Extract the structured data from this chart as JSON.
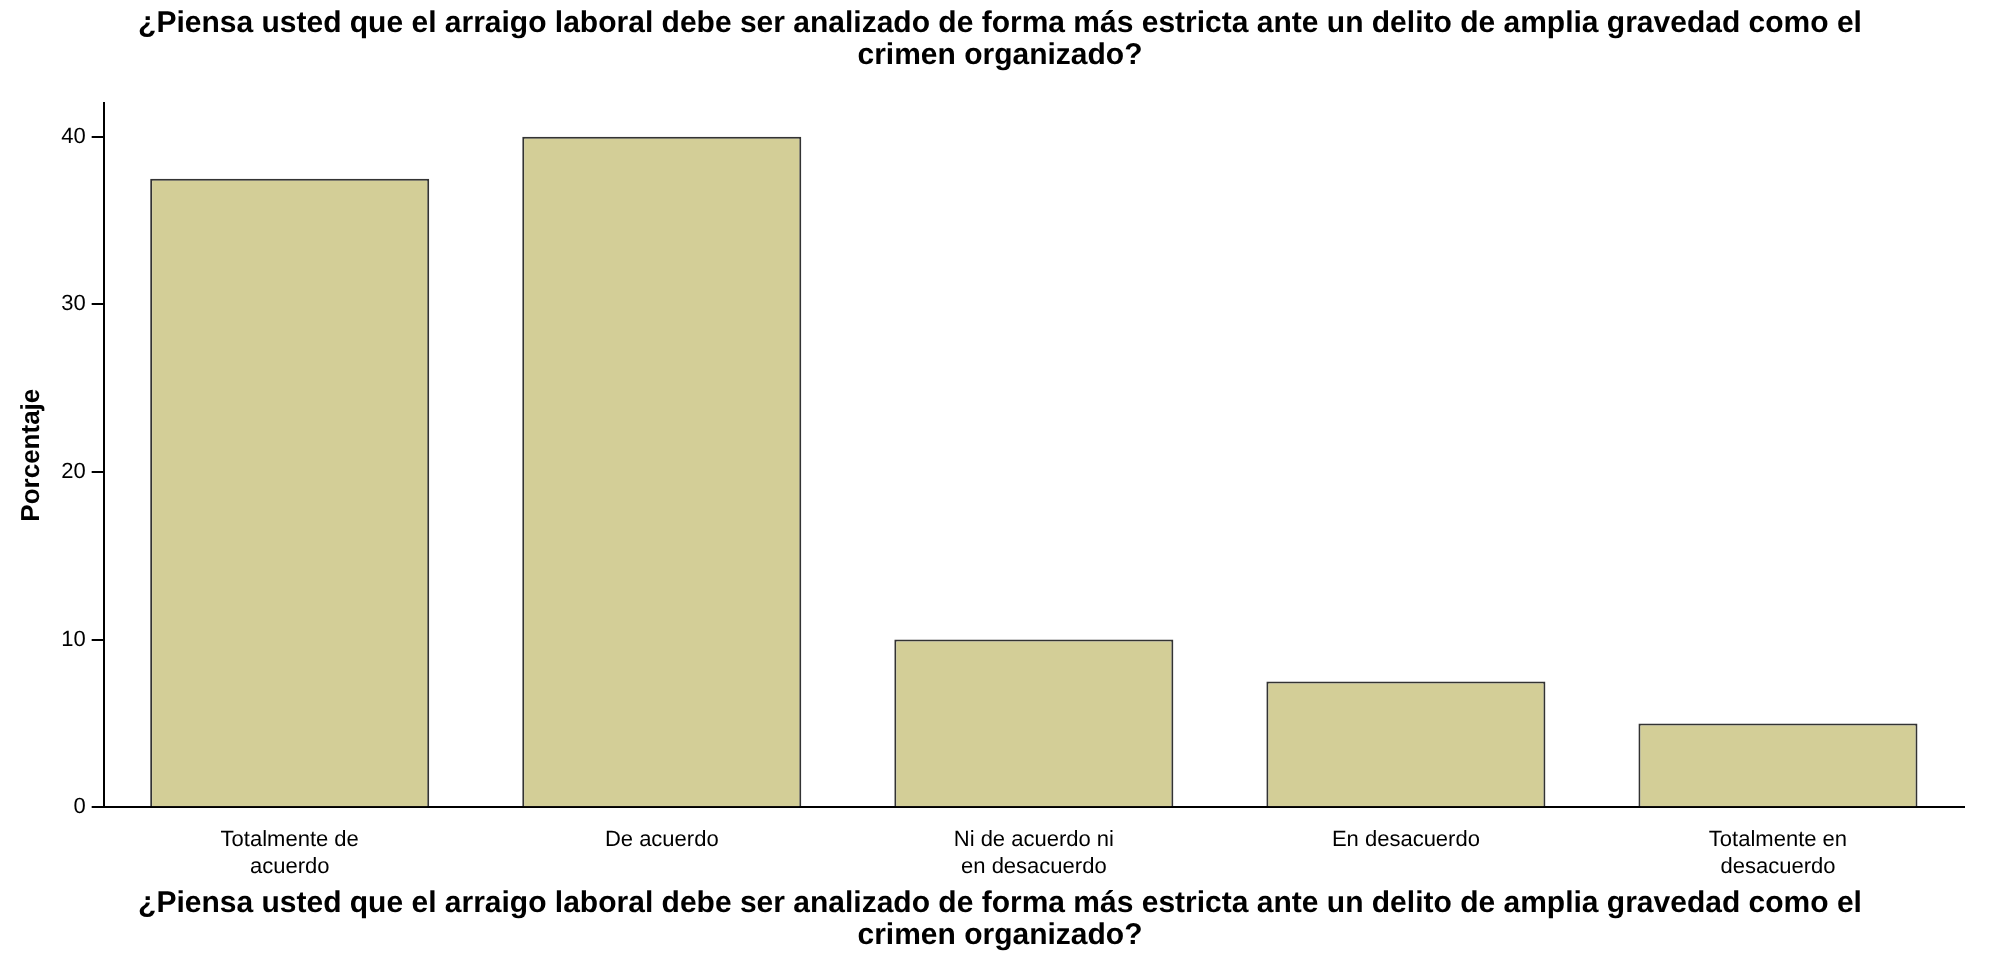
{
  "chart_data": {
    "type": "bar",
    "title": "¿Piensa usted que el arraigo laboral debe ser analizado de forma más estricta ante un delito de amplia gravedad como el crimen organizado?",
    "xlabel": "¿Piensa usted que el arraigo laboral debe ser analizado de forma más estricta ante un delito de amplia gravedad como el crimen organizado?",
    "ylabel": "Porcentaje",
    "categories": [
      "Totalmente de acuerdo",
      "De acuerdo",
      "Ni de acuerdo ni en desacuerdo",
      "En desacuerdo",
      "Totalmente en desacuerdo"
    ],
    "values": [
      37.5,
      40,
      10,
      7.5,
      5
    ],
    "color": "#d3ce97",
    "ylim": [
      0,
      42
    ],
    "yticks": [
      0,
      10,
      20,
      30,
      40
    ],
    "grid": false,
    "legend": false
  }
}
